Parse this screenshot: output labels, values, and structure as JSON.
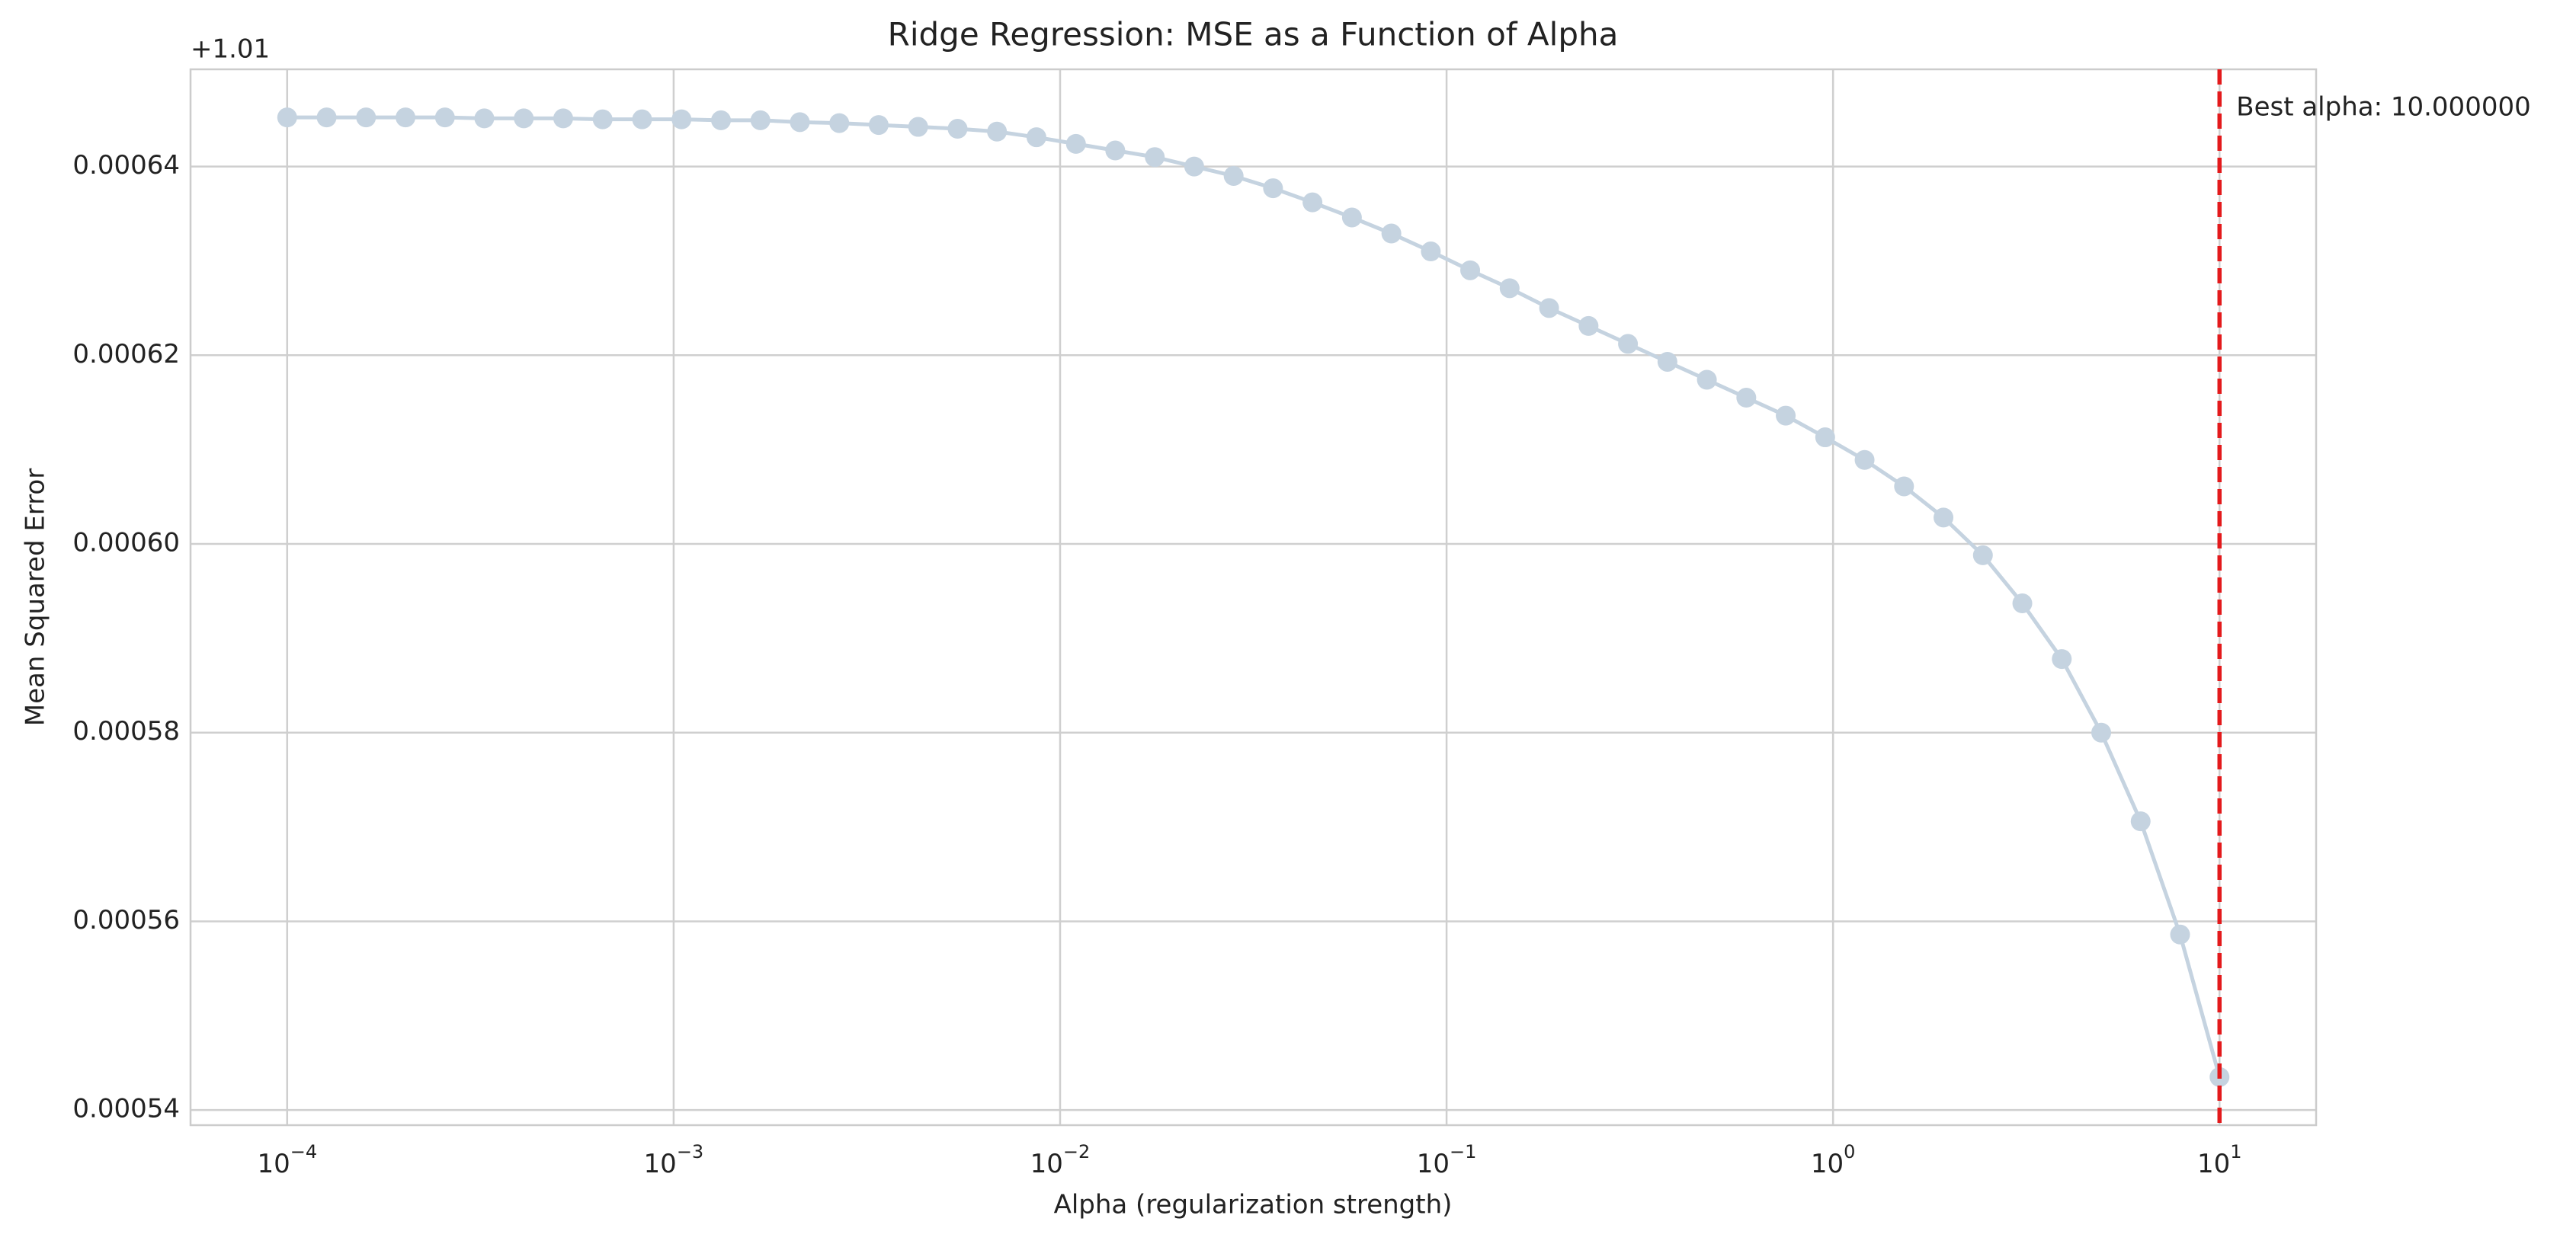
{
  "chart_data": {
    "type": "line",
    "title": "Ridge Regression: MSE as a Function of Alpha",
    "xlabel": "Alpha (regularization strength)",
    "ylabel": "Mean Squared Error",
    "y_offset": "+1.01",
    "x": [
      0.0001,
      0.0001265,
      0.00016,
      0.0002024,
      0.000256,
      0.0003237,
      0.0004095,
      0.0005179,
      0.0006551,
      0.0008286,
      0.001048,
      0.001326,
      0.001677,
      0.002121,
      0.002683,
      0.003393,
      0.004292,
      0.005429,
      0.006866,
      0.008685,
      0.01099,
      0.01389,
      0.01758,
      0.02223,
      0.02812,
      0.03556,
      0.04498,
      0.0569,
      0.07197,
      0.09103,
      0.1151,
      0.1456,
      0.1842,
      0.233,
      0.2947,
      0.3728,
      0.4715,
      0.5964,
      0.7543,
      0.9541,
      1.2068,
      1.5264,
      1.9307,
      2.4421,
      3.0888,
      3.9069,
      4.9417,
      6.2506,
      7.906,
      10
    ],
    "series": [
      {
        "color": "#c5d3e0",
        "values": [
          0.0006452,
          0.0006452,
          0.0006452,
          0.0006452,
          0.0006452,
          0.0006451,
          0.0006451,
          0.0006451,
          0.000645,
          0.000645,
          0.000645,
          0.0006449,
          0.0006449,
          0.0006447,
          0.0006446,
          0.0006444,
          0.0006442,
          0.000644,
          0.0006437,
          0.0006431,
          0.0006424,
          0.0006417,
          0.000641,
          0.00064,
          0.000639,
          0.0006377,
          0.0006362,
          0.0006346,
          0.0006329,
          0.000631,
          0.000629,
          0.0006271,
          0.000625,
          0.0006231,
          0.0006212,
          0.0006193,
          0.0006174,
          0.0006155,
          0.0006136,
          0.0006113,
          0.0006089,
          0.0006061,
          0.0006028,
          0.0005988,
          0.0005937,
          0.0005878,
          0.00058,
          0.0005706,
          0.0005586,
          0.0005435
        ]
      }
    ],
    "vline": {
      "x": 10,
      "color": "#e31a1c",
      "label": "Best alpha: 10.000000"
    },
    "xscale": "log",
    "xlim": [
      5.623e-05,
      17.78
    ],
    "xticks": [
      {
        "value": 0.0001,
        "label": "10",
        "exponent": "−4"
      },
      {
        "value": 0.001,
        "label": "10",
        "exponent": "−3"
      },
      {
        "value": 0.01,
        "label": "10",
        "exponent": "−2"
      },
      {
        "value": 0.1,
        "label": "10",
        "exponent": "−1"
      },
      {
        "value": 1,
        "label": "10",
        "exponent": "0"
      },
      {
        "value": 10,
        "label": "10",
        "exponent": "1"
      }
    ],
    "ylim": [
      0.0005384,
      0.0006503
    ],
    "yticks": [
      0.00054,
      0.00056,
      0.00058,
      {
        "value": 0.0006,
        "label": "0.00060"
      },
      0.00062,
      0.00064
    ],
    "grid": true
  }
}
